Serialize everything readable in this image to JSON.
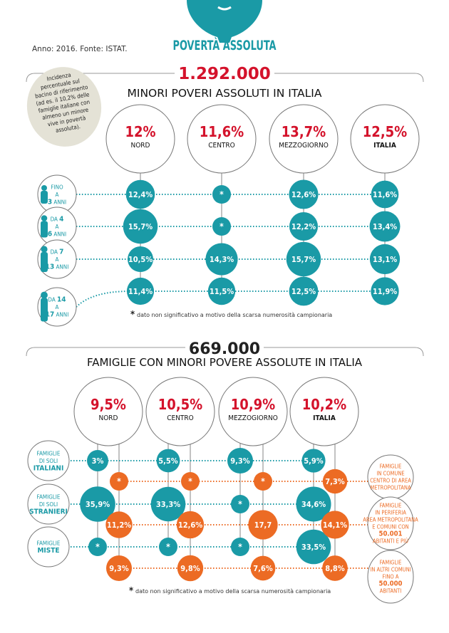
{
  "header": {
    "title": "POVERTÀ ASSOLUTA",
    "source": "Anno: 2016. Fonte: ISTAT."
  },
  "colors": {
    "teal": "#1a9aa6",
    "red": "#d4122b",
    "orange": "#ec6b24",
    "note_bg": "#e4e2d6",
    "grey": "#9a9a9a"
  },
  "note": {
    "lines": [
      "Incidenza",
      "percentuale sul",
      "bacino di riferimento",
      "(ad es. il 10,2% delle",
      "famiglie italiane con",
      "almeno un minore",
      "vive in povertà",
      "assoluta)."
    ]
  },
  "footnote": "dato non significativo a motivo della scarsa numerosità campionaria",
  "footnote_mark": "*",
  "chart_data": [
    {
      "type": "bubble-matrix",
      "total": "1.292.000",
      "title": "MINORI POVERI ASSOLUTI IN ITALIA",
      "columns": [
        {
          "label": "NORD",
          "value": "12%"
        },
        {
          "label": "CENTRO",
          "value": "11,6%"
        },
        {
          "label": "MEZZOGIORNO",
          "value": "13,7%"
        },
        {
          "label": "ITALIA",
          "value": "12,5%",
          "bold": true
        }
      ],
      "rows": [
        {
          "label": [
            [
              {
                "t": "FINO"
              }
            ],
            [
              {
                "t": "A"
              }
            ],
            [
              {
                "t": "3",
                "b": true
              },
              {
                "t": " ANNI"
              }
            ]
          ],
          "values": [
            12.4,
            null,
            12.6,
            11.6
          ]
        },
        {
          "label": [
            [
              {
                "t": "DA "
              },
              {
                "t": "4",
                "b": true
              }
            ],
            [
              {
                "t": "A"
              }
            ],
            [
              {
                "t": "6",
                "b": true
              },
              {
                "t": " ANNI"
              }
            ]
          ],
          "values": [
            15.7,
            null,
            12.2,
            13.4
          ]
        },
        {
          "label": [
            [
              {
                "t": "DA "
              },
              {
                "t": "7",
                "b": true
              }
            ],
            [
              {
                "t": "A"
              }
            ],
            [
              {
                "t": "13",
                "b": true
              },
              {
                "t": " ANNI"
              }
            ]
          ],
          "values": [
            10.5,
            14.3,
            15.7,
            13.1
          ]
        },
        {
          "label": [
            [
              {
                "t": "DA "
              },
              {
                "t": "14",
                "b": true
              }
            ],
            [
              {
                "t": "A"
              }
            ],
            [
              {
                "t": "17",
                "b": true
              },
              {
                "t": " ANNI"
              }
            ]
          ],
          "values": [
            11.4,
            11.5,
            12.5,
            11.9
          ]
        }
      ]
    },
    {
      "type": "bubble-matrix",
      "total": "669.000",
      "title": "FAMIGLIE CON MINORI POVERE ASSOLUTE IN ITALIA",
      "columns": [
        {
          "label": "NORD",
          "value": "9,5%"
        },
        {
          "label": "CENTRO",
          "value": "10,5%"
        },
        {
          "label": "MEZZOGIORNO",
          "value": "10,9%"
        },
        {
          "label": "ITALIA",
          "value": "10,2%",
          "bold": true
        }
      ],
      "rows_teal": [
        {
          "label": [
            [
              {
                "t": "FAMIGLIE"
              }
            ],
            [
              {
                "t": "DI SOLI"
              }
            ],
            [
              {
                "t": "ITALIANI",
                "b": true
              }
            ]
          ],
          "values": [
            3,
            5.5,
            9.3,
            5.9
          ]
        },
        {
          "label": [
            [
              {
                "t": "FAMIGLIE"
              }
            ],
            [
              {
                "t": "DI SOLI"
              }
            ],
            [
              {
                "t": "STRANIERI",
                "b": true
              }
            ]
          ],
          "values": [
            35.9,
            33.3,
            null,
            34.6
          ]
        },
        {
          "label": [
            [
              {
                "t": "FAMIGLIE"
              }
            ],
            [
              {
                "t": "MISTE",
                "b": true
              }
            ]
          ],
          "values": [
            null,
            null,
            null,
            33.5
          ]
        }
      ],
      "rows_orange": [
        {
          "label": [
            [
              {
                "t": "FAMIGLIE"
              }
            ],
            [
              {
                "t": "IN COMUNE"
              }
            ],
            [
              {
                "t": "CENTRO DI AREA"
              }
            ],
            [
              {
                "t": "METROPOLITANA"
              }
            ]
          ],
          "values": [
            null,
            null,
            null,
            7.3
          ]
        },
        {
          "label": [
            [
              {
                "t": "FAMIGLIE"
              }
            ],
            [
              {
                "t": "IN PERIFERIA"
              }
            ],
            [
              {
                "t": "AREA METROPOLITANA"
              }
            ],
            [
              {
                "t": "E COMUNI CON"
              }
            ],
            [
              {
                "t": "50.001",
                "b": true
              }
            ],
            [
              {
                "t": "ABITANTI E PIÙ"
              }
            ]
          ],
          "values": [
            11.2,
            12.6,
            17.7,
            14.1
          ]
        },
        {
          "label": [
            [
              {
                "t": "FAMIGLIE"
              }
            ],
            [
              {
                "t": "IN ALTRI COMUNI"
              }
            ],
            [
              {
                "t": "FINO A"
              }
            ],
            [
              {
                "t": "50.000",
                "b": true
              }
            ],
            [
              {
                "t": "ABITANTI"
              }
            ]
          ],
          "values": [
            9.3,
            9.8,
            7.6,
            8.8
          ]
        }
      ],
      "value_labels_orange": [
        "*",
        "*",
        "*",
        "7,3%",
        "11,2%",
        "12,6%",
        "17,7",
        "14,1%",
        "9,3%",
        "9,8%",
        "7,6%",
        "8,8%"
      ]
    }
  ]
}
